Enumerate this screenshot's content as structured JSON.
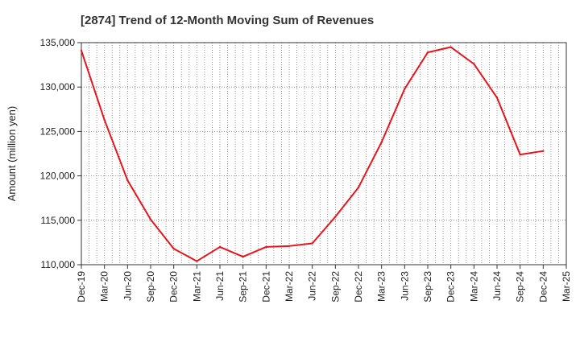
{
  "chart_data": {
    "type": "line",
    "title": "[2874]  Trend of 12-Month Moving Sum of Revenues",
    "ylabel": "Amount (million yen)",
    "xlabel": "",
    "ylim": [
      110000,
      135000
    ],
    "yticks": [
      110000,
      115000,
      120000,
      125000,
      130000,
      135000
    ],
    "ytick_labels": [
      "110,000",
      "115,000",
      "120,000",
      "125,000",
      "130,000",
      "135,000"
    ],
    "xtick_labels": [
      "Dec-19",
      "Mar-20",
      "Jun-20",
      "Sep-20",
      "Dec-20",
      "Mar-21",
      "Jun-21",
      "Sep-21",
      "Dec-21",
      "Mar-22",
      "Jun-22",
      "Sep-22",
      "Dec-22",
      "Mar-23",
      "Jun-23",
      "Sep-23",
      "Dec-23",
      "Mar-24",
      "Jun-24",
      "Sep-24",
      "Dec-24",
      "Mar-25"
    ],
    "grid": true,
    "line_color": "#e8141b",
    "series": [
      {
        "x": [
          "Dec-19",
          "Mar-20",
          "Jun-20",
          "Sep-20",
          "Dec-20",
          "Mar-21",
          "Jun-21",
          "Sep-21",
          "Dec-21",
          "Mar-22",
          "Jun-22",
          "Sep-22",
          "Dec-22",
          "Mar-23",
          "Jun-23",
          "Sep-23",
          "Dec-23",
          "Mar-24",
          "Jun-24",
          "Sep-24",
          "Dec-24"
        ],
        "values": [
          134100,
          126300,
          119500,
          115100,
          111800,
          110400,
          112000,
          110900,
          112000,
          112100,
          112400,
          115400,
          118700,
          123800,
          129800,
          133900,
          134500,
          132600,
          128800,
          122400,
          122800
        ]
      }
    ]
  }
}
